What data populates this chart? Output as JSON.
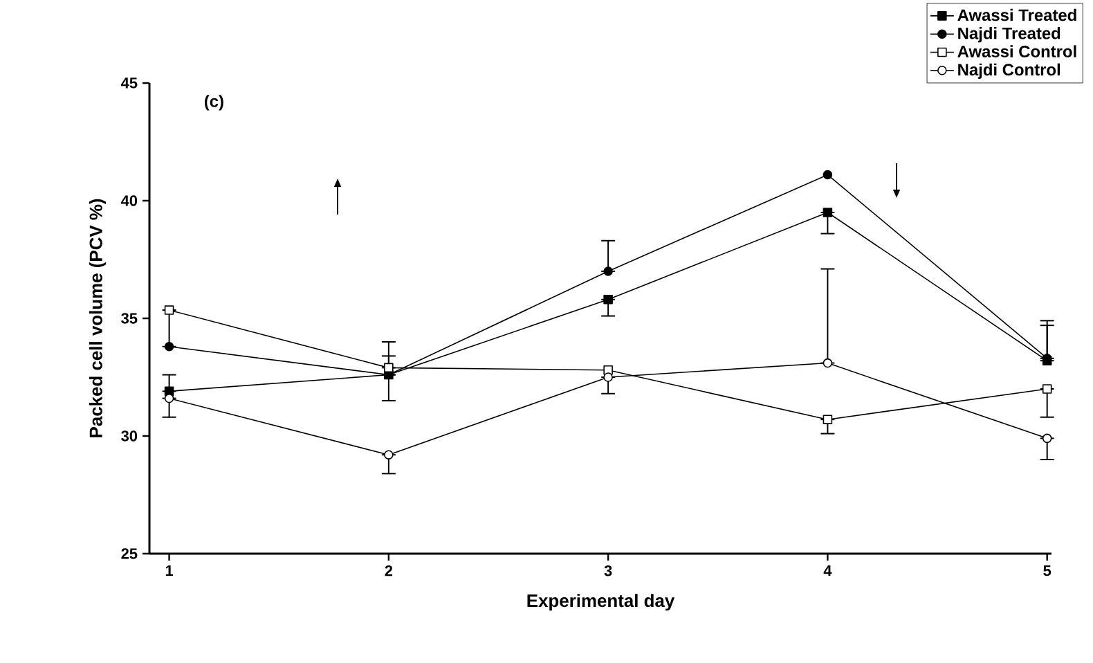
{
  "chart_data": {
    "type": "line",
    "xlabel": "Experimental day",
    "ylabel": "Packed cell volume (PCV %)",
    "annotations": [
      "(c)"
    ],
    "x": [
      1,
      2,
      3,
      4,
      5
    ],
    "xlim": [
      0.91,
      5.02
    ],
    "xticks": [
      1,
      2,
      3,
      4,
      5
    ],
    "ylim": [
      25,
      45
    ],
    "yticks": [
      25,
      30,
      35,
      40,
      45
    ],
    "legend": "top right",
    "grid": false,
    "series": [
      {
        "name": "Awassi Treated",
        "color": "#000000",
        "marker": "square",
        "colors": [
          "#000000",
          "#000000",
          "#000000",
          "#000000",
          "#000000"
        ],
        "values": [
          31.9,
          32.6,
          35.8,
          39.5,
          33.2
        ],
        "errors": [
          [
            31.9,
            32.6
          ],
          [
            32.6,
            34.0
          ],
          [
            35.1,
            35.8
          ],
          [
            38.6,
            39.5
          ],
          [
            33.2,
            34.9
          ]
        ]
      },
      {
        "name": "Najdi Treated",
        "color": "#000000",
        "marker": "circle",
        "colors": [
          "#000000",
          "#000000",
          "#000000",
          "#000000",
          "#000000"
        ],
        "values": [
          33.8,
          32.6,
          37.0,
          41.1,
          33.3
        ],
        "errors": [
          null,
          [
            31.5,
            32.6
          ],
          [
            37.0,
            38.3
          ],
          null,
          [
            33.3,
            34.7
          ]
        ]
      },
      {
        "name": "Awassi Control",
        "color": "#000000",
        "marker": "square",
        "colors": [
          "#ffffff",
          "#ffffff",
          "#ffffff",
          "#ffffff",
          "#ffffff"
        ],
        "values": [
          35.35,
          32.9,
          32.8,
          30.7,
          32.0
        ],
        "errors": [
          [
            33.8,
            35.35
          ],
          [
            32.9,
            33.4
          ],
          null,
          [
            30.1,
            30.7
          ],
          [
            30.8,
            32.0
          ]
        ]
      },
      {
        "name": "Najdi Control",
        "color": "#000000",
        "marker": "circle",
        "colors": [
          "#ffffff",
          "#ffffff",
          "#ffffff",
          "#ffffff",
          "#ffffff"
        ],
        "values": [
          31.6,
          29.2,
          32.5,
          33.1,
          29.9
        ],
        "errors": [
          [
            30.8,
            31.6
          ],
          [
            28.4,
            29.2
          ],
          [
            31.8,
            32.5
          ],
          [
            33.1,
            37.1
          ],
          [
            29.0,
            29.9
          ]
        ]
      }
    ]
  }
}
